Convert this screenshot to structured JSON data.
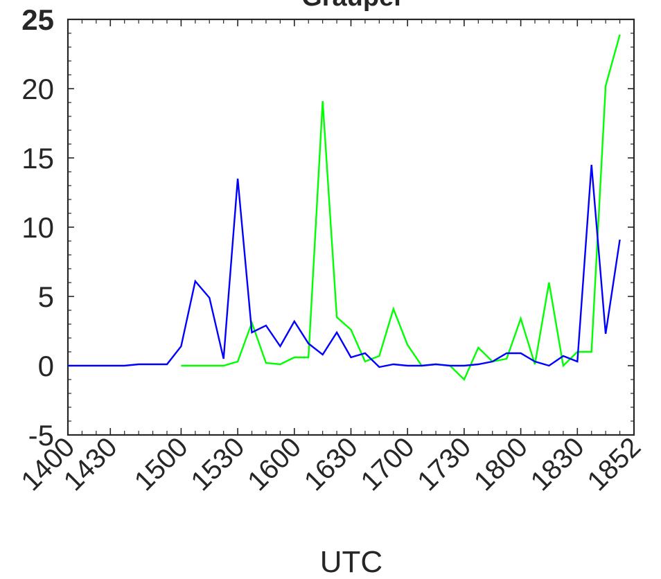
{
  "chart_data": {
    "type": "line",
    "title": "Graupel",
    "xlabel": "UTC",
    "ylabel": "",
    "xlim": [
      0,
      40
    ],
    "ylim": [
      -5,
      25
    ],
    "grid": false,
    "x_ticks": [
      {
        "x": 0,
        "label": "1400"
      },
      {
        "x": 3,
        "label": "1430"
      },
      {
        "x": 8,
        "label": "1500"
      },
      {
        "x": 12,
        "label": "1530"
      },
      {
        "x": 16,
        "label": "1600"
      },
      {
        "x": 20,
        "label": "1630"
      },
      {
        "x": 24,
        "label": "1700"
      },
      {
        "x": 28,
        "label": "1730"
      },
      {
        "x": 32,
        "label": "1800"
      },
      {
        "x": 36,
        "label": "1830"
      },
      {
        "x": 40,
        "label": "1852"
      }
    ],
    "y_ticks": [
      {
        "y": -5,
        "label": "-5"
      },
      {
        "y": 0,
        "label": "0"
      },
      {
        "y": 5,
        "label": "5"
      },
      {
        "y": 10,
        "label": "10"
      },
      {
        "y": 15,
        "label": "15"
      },
      {
        "y": 20,
        "label": "20"
      },
      {
        "y": 25,
        "label": "25"
      }
    ],
    "series": [
      {
        "color": "#00ff00",
        "points": [
          [
            8,
            0.0
          ],
          [
            9,
            0.0
          ],
          [
            10,
            0.0
          ],
          [
            11,
            0.0
          ],
          [
            12,
            0.3
          ],
          [
            13,
            3.1
          ],
          [
            14,
            0.2
          ],
          [
            15,
            0.1
          ],
          [
            16,
            0.6
          ],
          [
            17,
            0.6
          ],
          [
            18,
            19.1
          ],
          [
            19,
            3.5
          ],
          [
            20,
            2.6
          ],
          [
            21,
            0.3
          ],
          [
            22,
            0.7
          ],
          [
            23,
            4.1
          ],
          [
            24,
            1.5
          ],
          [
            25,
            0.0
          ],
          [
            26,
            0.1
          ],
          [
            27,
            0.0
          ],
          [
            28,
            -1.0
          ],
          [
            29,
            1.3
          ],
          [
            30,
            0.3
          ],
          [
            31,
            0.5
          ],
          [
            32,
            3.4
          ],
          [
            33,
            0.1
          ],
          [
            34,
            6.0
          ],
          [
            35,
            0.0
          ],
          [
            36,
            1.0
          ],
          [
            37,
            1.0
          ],
          [
            38,
            20.2
          ],
          [
            39,
            23.9
          ]
        ]
      },
      {
        "color": "#0000ff",
        "points": [
          [
            0,
            0.0
          ],
          [
            1,
            0.0
          ],
          [
            2,
            0.0
          ],
          [
            3,
            0.0
          ],
          [
            4,
            0.0
          ],
          [
            5,
            0.1
          ],
          [
            6,
            0.1
          ],
          [
            7,
            0.1
          ],
          [
            8,
            1.4
          ],
          [
            9,
            6.1
          ],
          [
            10,
            4.9
          ],
          [
            11,
            0.5
          ],
          [
            12,
            13.5
          ],
          [
            13,
            2.4
          ],
          [
            14,
            2.9
          ],
          [
            15,
            1.4
          ],
          [
            16,
            3.2
          ],
          [
            17,
            1.6
          ],
          [
            18,
            0.8
          ],
          [
            19,
            2.4
          ],
          [
            20,
            0.6
          ],
          [
            21,
            0.9
          ],
          [
            22,
            -0.1
          ],
          [
            23,
            0.1
          ],
          [
            24,
            0.0
          ],
          [
            25,
            0.0
          ],
          [
            26,
            0.1
          ],
          [
            27,
            0.0
          ],
          [
            28,
            0.0
          ],
          [
            29,
            0.1
          ],
          [
            30,
            0.3
          ],
          [
            31,
            0.9
          ],
          [
            32,
            0.9
          ],
          [
            33,
            0.3
          ],
          [
            34,
            0.0
          ],
          [
            35,
            0.7
          ],
          [
            36,
            0.3
          ],
          [
            37,
            14.5
          ],
          [
            38,
            2.3
          ],
          [
            39,
            9.1
          ]
        ]
      }
    ]
  }
}
